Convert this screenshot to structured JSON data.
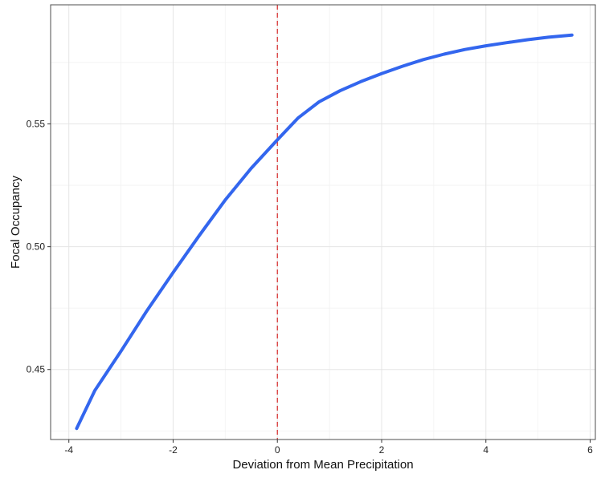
{
  "chart_data": {
    "type": "line",
    "title": "",
    "xlabel": "Deviation from Mean Precipitation",
    "ylabel": "Focal Occupancy",
    "xlim": [
      -4.35,
      6.1
    ],
    "ylim": [
      0.4215,
      0.5985
    ],
    "x_ticks": [
      -4,
      -2,
      0,
      2,
      4,
      6
    ],
    "x_tick_labels": [
      "-4",
      "-2",
      "0",
      "2",
      "4",
      "6"
    ],
    "y_ticks": [
      0.45,
      0.5,
      0.55
    ],
    "y_tick_labels": [
      "0.45",
      "0.50",
      "0.55"
    ],
    "grid": true,
    "reference_line": {
      "axis": "x",
      "value": 0,
      "style": "dashed",
      "color": "#d62728"
    },
    "series": [
      {
        "color": "#3366ee",
        "x": [
          -3.85,
          -3.5,
          -3.0,
          -2.5,
          -2.0,
          -1.5,
          -1.0,
          -0.5,
          0.0,
          0.4,
          0.8,
          1.2,
          1.6,
          2.0,
          2.4,
          2.8,
          3.2,
          3.6,
          4.0,
          4.4,
          4.8,
          5.2,
          5.65
        ],
        "y": [
          0.426,
          0.4415,
          0.4575,
          0.474,
          0.4895,
          0.5045,
          0.519,
          0.532,
          0.5435,
          0.5525,
          0.559,
          0.5635,
          0.5672,
          0.5705,
          0.5735,
          0.5762,
          0.5784,
          0.5803,
          0.5818,
          0.5831,
          0.5843,
          0.5853,
          0.5862
        ]
      }
    ]
  }
}
